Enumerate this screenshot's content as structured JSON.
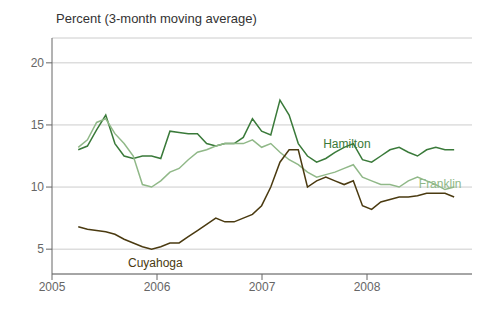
{
  "chart_data": {
    "type": "line",
    "title": "Percent (3-month moving average)",
    "x": [
      2005.25,
      2005.337317,
      2005.424634,
      2005.511951,
      2005.599268,
      2005.686585,
      2005.773902,
      2005.86122,
      2005.948537,
      2006.035854,
      2006.123171,
      2006.210488,
      2006.297805,
      2006.385122,
      2006.472439,
      2006.559756,
      2006.647073,
      2006.73439,
      2006.821707,
      2006.909024,
      2006.996341,
      2007.083659,
      2007.170976,
      2007.258293,
      2007.34561,
      2007.432927,
      2007.520244,
      2007.607561,
      2007.694878,
      2007.782195,
      2007.869512,
      2007.956829,
      2008.044146,
      2008.131463,
      2008.21878,
      2008.306098,
      2008.393415,
      2008.480732,
      2008.568049,
      2008.655366,
      2008.742683,
      2008.83
    ],
    "series": [
      {
        "name": "Hamilton",
        "color": "#3a7a3a",
        "values": [
          13.0,
          13.3,
          14.6,
          15.8,
          13.5,
          12.5,
          12.3,
          12.5,
          12.5,
          12.3,
          14.5,
          14.4,
          14.3,
          14.3,
          13.5,
          13.3,
          13.5,
          13.5,
          14.0,
          15.5,
          14.5,
          14.2,
          17.0,
          15.8,
          13.5,
          12.5,
          12.0,
          12.3,
          12.8,
          13.2,
          13.5,
          12.2,
          12.0,
          12.5,
          13.0,
          13.2,
          12.8,
          12.5,
          13.0,
          13.2,
          13.0,
          13.0
        ]
      },
      {
        "name": "Franklin",
        "color": "#90b888",
        "values": [
          13.2,
          13.8,
          15.2,
          15.5,
          14.3,
          13.5,
          12.5,
          10.2,
          10.0,
          10.5,
          11.2,
          11.5,
          12.2,
          12.8,
          13.0,
          13.3,
          13.5,
          13.5,
          13.5,
          13.8,
          13.2,
          13.5,
          12.8,
          12.2,
          11.8,
          11.2,
          10.8,
          11.0,
          11.2,
          11.5,
          11.8,
          10.8,
          10.5,
          10.2,
          10.2,
          10.0,
          10.5,
          10.8,
          10.5,
          10.2,
          9.8,
          10.0
        ]
      },
      {
        "name": "Cuyahoga",
        "color": "#4a3a10",
        "values": [
          6.8,
          6.6,
          6.5,
          6.4,
          6.2,
          5.8,
          5.5,
          5.2,
          5.0,
          5.2,
          5.5,
          5.5,
          6.0,
          6.5,
          7.0,
          7.5,
          7.2,
          7.2,
          7.5,
          7.8,
          8.5,
          10.0,
          12.0,
          13.0,
          13.0,
          10.0,
          10.5,
          10.8,
          10.5,
          10.2,
          10.5,
          8.5,
          8.2,
          8.8,
          9.0,
          9.2,
          9.2,
          9.3,
          9.5,
          9.5,
          9.5,
          9.2
        ]
      }
    ],
    "annotations": [
      {
        "text": "Hamilton",
        "x": 2007.582927,
        "y": 13.5,
        "color": "#3a7a3a"
      },
      {
        "text": "Franklin",
        "x": 2008.493415,
        "y": 10.3,
        "color": "#90b888"
      },
      {
        "text": "Cuyahoga",
        "x": 2005.723902,
        "y": 3.9,
        "color": "#4a3a10"
      }
    ],
    "xlim": [
      2005,
      2009
    ],
    "xticks": [
      2005,
      2006,
      2007,
      2008
    ],
    "ylim": [
      3,
      22
    ],
    "yticks": [
      5,
      10,
      15,
      20
    ],
    "grid": true
  }
}
